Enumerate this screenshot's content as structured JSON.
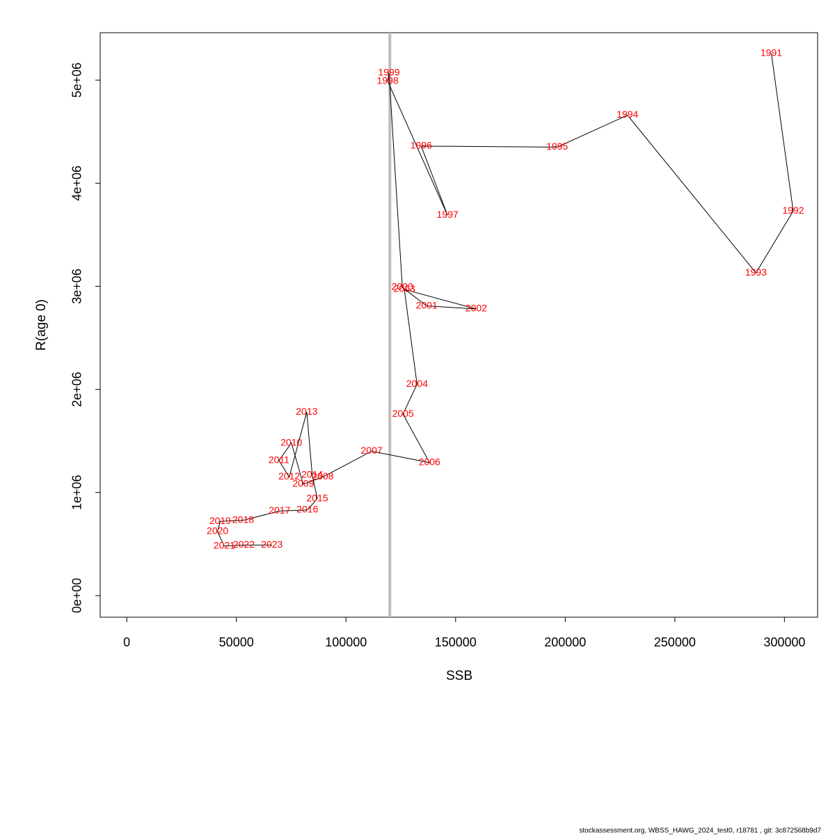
{
  "chart_data": {
    "type": "scatter",
    "x_label": "SSB",
    "y_label": "R(age 0)",
    "footer": "stockassessment.org, WBSS_HAWG_2024_test0, r18781 , git: 3c872568b9d7",
    "xlim": [
      -12120,
      315120
    ],
    "ylim": [
      -210000,
      5460000
    ],
    "xticks": [
      0,
      50000,
      100000,
      150000,
      200000,
      250000,
      300000
    ],
    "yticks": [
      {
        "value": 0,
        "label": "0e+00"
      },
      {
        "value": 1000000,
        "label": "1e+06"
      },
      {
        "value": 2000000,
        "label": "2e+06"
      },
      {
        "value": 3000000,
        "label": "3e+06"
      },
      {
        "value": 4000000,
        "label": "4e+06"
      },
      {
        "value": 5000000,
        "label": "5e+06"
      }
    ],
    "vline": 120000,
    "vline_color": "#bebebe",
    "line_color": "#000000",
    "label_color": "#ff0000",
    "labels": [
      "1991",
      "1992",
      "1993",
      "1994",
      "1995",
      "1996",
      "1997",
      "1998",
      "1999",
      "2000",
      "2001",
      "2002",
      "2003",
      "2004",
      "2005",
      "2006",
      "2007",
      "2008",
      "2009",
      "2010",
      "2011",
      "2012",
      "2013",
      "2014",
      "2015",
      "2016",
      "2017",
      "2018",
      "2019",
      "2020",
      "2021",
      "2022",
      "2023"
    ],
    "x": [
      294000,
      304000,
      287000,
      228400,
      196300,
      134300,
      146300,
      119000,
      119600,
      125700,
      136800,
      159400,
      126600,
      132400,
      126000,
      138100,
      111700,
      89400,
      80500,
      75100,
      69400,
      74100,
      82100,
      84600,
      86900,
      82400,
      69700,
      53100,
      42600,
      41400,
      44500,
      53400,
      66200
    ],
    "y": [
      5260000,
      3730000,
      3130000,
      4660000,
      4350000,
      4360000,
      3690000,
      4990000,
      5070000,
      2990000,
      2810000,
      2780000,
      2970000,
      2050000,
      1760000,
      1290000,
      1400000,
      1150000,
      1080000,
      1480000,
      1310000,
      1150000,
      1780000,
      1170000,
      940000,
      830000,
      820000,
      730000,
      720000,
      620000,
      480000,
      490000,
      490000
    ]
  }
}
